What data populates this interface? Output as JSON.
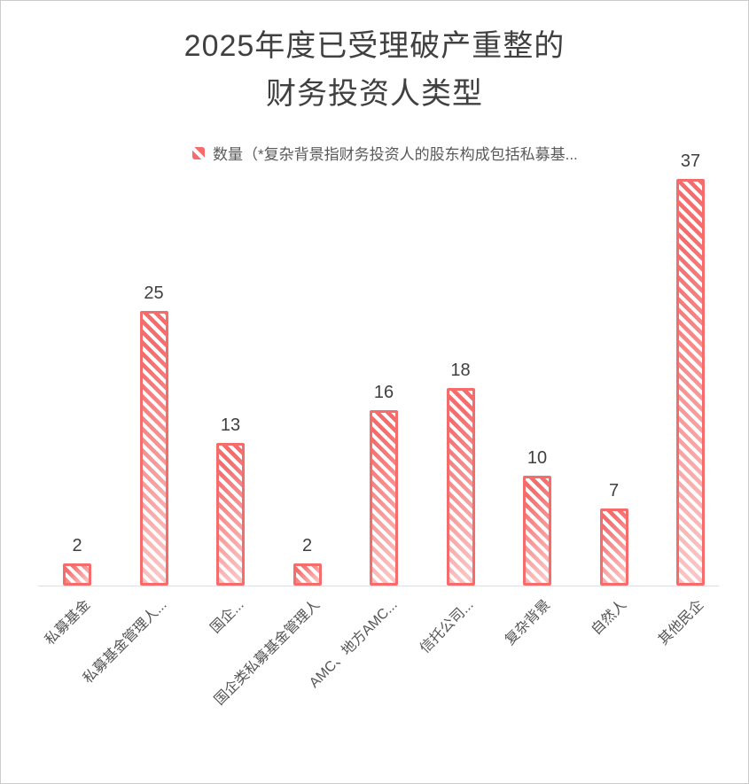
{
  "window": {
    "background": "#ffffff",
    "border_color": "#cccccc"
  },
  "title": {
    "line1": "2025年度已受理破产重整的",
    "line2": "财务投资人类型",
    "color": "#404040"
  },
  "legend": {
    "label": "数量（*复杂背景指财务投资人的股东构成包括私募基...",
    "series_name": "数量",
    "swatch_color": "#f56c6c",
    "text_color": "#595959"
  },
  "chart_data": {
    "type": "bar",
    "title": "2025年度已受理破产重整的财务投资人类型",
    "series_name": "数量",
    "categories": [
      "私募基金",
      "私募基金管理人...",
      "国企...",
      "国企类私募基金管理人",
      "AMC、地方AMC...",
      "信托公司...",
      "复杂背景",
      "自然人",
      "其他民企"
    ],
    "values": [
      2,
      25,
      13,
      2,
      16,
      18,
      10,
      7,
      37
    ],
    "value_labels": [
      "2",
      "25",
      "13",
      "2",
      "16",
      "18",
      "10",
      "7",
      "37"
    ],
    "bar_color": "#f56c6c",
    "bar_fill_style": "diagonal-hatch",
    "value_label_color": "#3f3f3f",
    "axis_label_color": "#555555",
    "axis_label_rotation_deg": 45,
    "axis_line_color": "#e0e0e0",
    "grid": false,
    "y_axis_visible": false,
    "legend_position": "top-center",
    "ylim": [
      0,
      37
    ]
  }
}
